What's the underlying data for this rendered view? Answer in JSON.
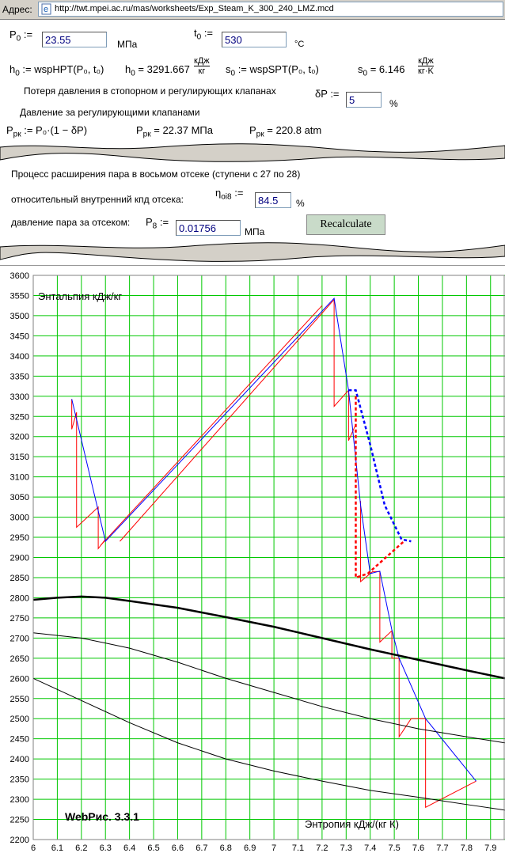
{
  "address_bar": {
    "label": "Адрес:",
    "url": "http://twt.mpei.ac.ru/mas/worksheets/Exp_Steam_K_300_240_LMZ.mcd"
  },
  "worksheet": {
    "p0": {
      "symbol": "P",
      "sub": "0",
      "op": ":=",
      "input": "23.55",
      "unit": "МПа"
    },
    "t0": {
      "symbol": "t",
      "sub": "0",
      "op": ":=",
      "input": "530",
      "unit": "°C"
    },
    "h0_def": {
      "symbol": "h",
      "sub": "0",
      "rest": ":= wspHPT(P₀, t₀)"
    },
    "h0_result": {
      "symbol": "h",
      "sub": "0",
      "rest": "= 3291.667",
      "unit_num": "кДж",
      "unit_den": "кг"
    },
    "s0_def": {
      "symbol": "s",
      "sub": "0",
      "rest": ":= wspSPT(P₀, t₀)"
    },
    "s0_result": {
      "symbol": "s",
      "sub": "0",
      "rest": "= 6.146",
      "unit_num": "кДж",
      "unit_den": "кг·K"
    },
    "loss_text": "Потеря давления в стопорном и регулирующих клапанах",
    "dp": {
      "symbol": "δP",
      "op": ":=",
      "input": "5",
      "unit": "%"
    },
    "pressure_text": "Давление за регулирующими клапанами",
    "prk_def": {
      "symbol": "P",
      "sub": "рк",
      "rest": ":= P₀·(1 − δP)"
    },
    "prk_mpa": {
      "symbol": "P",
      "sub": "рк",
      "rest": "= 22.37 МПа"
    },
    "prk_atm": {
      "symbol": "P",
      "sub": "рк",
      "rest": "= 220.8 atm"
    }
  },
  "section2": {
    "title": "Процесс расширения пара в восьмом отсеке (ступени с 27 по 28)",
    "eff_text": "относительный внутренний кпд отсека:",
    "eff": {
      "symbol": "η",
      "sub": "oi8",
      "op": ":=",
      "input": "84.5",
      "unit": "%"
    },
    "p8_text": "давление пара за отсеком:",
    "p8": {
      "symbol": "P",
      "sub": "8",
      "op": ":=",
      "input": "0.01756",
      "unit": "МПа"
    },
    "button": "Recalculate"
  },
  "chart_data": {
    "type": "line",
    "ylabel": "Энтальпия кДж/кг",
    "xlabel": "Энтропия кДж/(кг К)",
    "annotation": "WebРис. 3.3.1",
    "xlim": [
      6,
      7.96
    ],
    "ylim": [
      2200,
      3600
    ],
    "xticks": [
      6,
      6.1,
      6.2,
      6.3,
      6.4,
      6.5,
      6.6,
      6.7,
      6.8,
      6.9,
      7,
      7.1,
      7.2,
      7.3,
      7.4,
      7.5,
      7.6,
      7.7,
      7.8,
      7.9
    ],
    "yticks": [
      2200,
      2250,
      2300,
      2350,
      2400,
      2450,
      2500,
      2550,
      2600,
      2650,
      2700,
      2750,
      2800,
      2850,
      2900,
      2950,
      3000,
      3050,
      3100,
      3150,
      3200,
      3250,
      3300,
      3350,
      3400,
      3450,
      3500,
      3550,
      3600
    ],
    "grid": true,
    "grid_color": "#00c800",
    "series": [
      {
        "color": "#ff0000",
        "width": 1,
        "dash": false,
        "x": [
          6.16,
          6.16,
          6.18,
          6.18,
          6.27,
          6.27,
          6.3
        ],
        "values": [
          3293,
          3218,
          3260,
          2975,
          3025,
          2922,
          2945
        ]
      },
      {
        "color": "#ff0000",
        "width": 1,
        "dash": false,
        "x": [
          6.28,
          7.2
        ],
        "values": [
          2930,
          3525
        ]
      },
      {
        "color": "#ff0000",
        "width": 1,
        "dash": false,
        "x": [
          6.36,
          7.25
        ],
        "values": [
          2940,
          3540
        ]
      },
      {
        "color": "#ff0000",
        "width": 1,
        "dash": false,
        "x": [
          7.25,
          7.25,
          7.31,
          7.31,
          7.34
        ],
        "values": [
          3543,
          3275,
          3315,
          3190,
          3230
        ]
      },
      {
        "color": "#ff0000",
        "width": 1,
        "dash": false,
        "x": [
          7.36,
          7.36,
          7.41,
          7.44,
          7.44,
          7.49,
          7.49,
          7.52,
          7.52,
          7.57,
          7.63,
          7.63,
          7.84
        ],
        "values": [
          3040,
          2840,
          2865,
          2865,
          2690,
          2718,
          2650,
          2650,
          2455,
          2500,
          2500,
          2280,
          2345
        ]
      },
      {
        "color": "#0000ff",
        "width": 1,
        "dash": false,
        "x": [
          6.16,
          6.3,
          7.25,
          7.31,
          7.36,
          7.4,
          7.44,
          7.49,
          7.52,
          7.63,
          7.84
        ],
        "values": [
          3293,
          2940,
          3543,
          3315,
          3030,
          2860,
          2866,
          2720,
          2650,
          2500,
          2345
        ]
      },
      {
        "color": "#0000ff",
        "width": 2.5,
        "dash": true,
        "x": [
          7.31,
          7.34,
          7.4,
          7.46,
          7.53,
          7.57
        ],
        "values": [
          3315,
          3315,
          3180,
          3030,
          2945,
          2940
        ]
      },
      {
        "color": "#ff0000",
        "width": 2.5,
        "dash": true,
        "x": [
          7.34,
          7.34,
          7.39,
          7.54
        ],
        "values": [
          3300,
          2850,
          2860,
          2940
        ]
      },
      {
        "color": "#000000",
        "width": 2.5,
        "dash": false,
        "x": [
          6,
          6.1,
          6.2,
          6.3,
          6.4,
          6.6,
          6.8,
          7,
          7.2,
          7.4,
          7.6,
          7.8,
          7.96
        ],
        "values": [
          2795,
          2800,
          2803,
          2800,
          2792,
          2775,
          2752,
          2728,
          2700,
          2672,
          2646,
          2620,
          2600
        ]
      },
      {
        "color": "#000000",
        "width": 1,
        "dash": false,
        "x": [
          6,
          6.2,
          6.4,
          6.6,
          6.8,
          7,
          7.2,
          7.4,
          7.6,
          7.8,
          7.96
        ],
        "values": [
          2713,
          2700,
          2675,
          2640,
          2600,
          2565,
          2530,
          2500,
          2475,
          2455,
          2440
        ]
      },
      {
        "color": "#000000",
        "width": 1,
        "dash": false,
        "x": [
          6,
          6.2,
          6.4,
          6.6,
          6.8,
          7,
          7.2,
          7.4,
          7.6,
          7.8,
          7.96
        ],
        "values": [
          2600,
          2545,
          2490,
          2440,
          2400,
          2370,
          2345,
          2322,
          2305,
          2287,
          2273
        ]
      }
    ]
  }
}
